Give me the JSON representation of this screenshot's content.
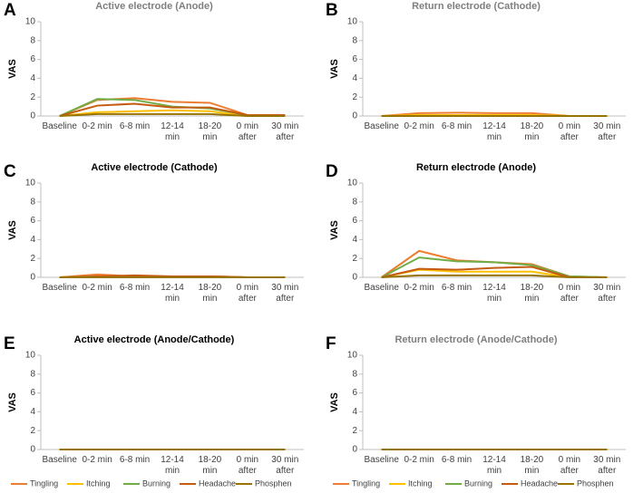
{
  "chart_data": [
    {
      "type": "line",
      "panel": "A",
      "title": "Active electrode (Anode)",
      "title_color": "#7f7f7f",
      "ylabel": "VAS",
      "categories": [
        "Baseline",
        "0-2 min",
        "6-8 min",
        "12-14 min",
        "18-20 min",
        "0 min after",
        "30 min after"
      ],
      "ylim": [
        0,
        10
      ],
      "yticks": [
        0,
        2,
        4,
        6,
        8,
        10
      ],
      "series": [
        {
          "name": "Tingling",
          "color": "#ed7d31",
          "values": [
            0,
            1.7,
            1.9,
            1.5,
            1.4,
            0.1,
            0.1
          ]
        },
        {
          "name": "Itching",
          "color": "#ffc000",
          "values": [
            0,
            0.4,
            0.5,
            0.6,
            0.5,
            0,
            0
          ]
        },
        {
          "name": "Burning",
          "color": "#70ad47",
          "values": [
            0,
            1.8,
            1.7,
            1.0,
            0.8,
            0.1,
            0.1
          ]
        },
        {
          "name": "Headache",
          "color": "#c55a11",
          "values": [
            0,
            1.1,
            1.3,
            0.9,
            0.9,
            0.1,
            0.1
          ]
        },
        {
          "name": "Phosphen",
          "color": "#997300",
          "values": [
            0,
            0.2,
            0.2,
            0.2,
            0.2,
            0,
            0
          ]
        }
      ]
    },
    {
      "type": "line",
      "panel": "B",
      "title": "Return electrode (Cathode)",
      "title_color": "#7f7f7f",
      "ylabel": "VAS",
      "categories": [
        "Baseline",
        "0-2 min",
        "6-8 min",
        "12-14 min",
        "18-20 min",
        "0 min after",
        "30 min after"
      ],
      "ylim": [
        0,
        10
      ],
      "yticks": [
        0,
        2,
        4,
        6,
        8,
        10
      ],
      "series": [
        {
          "name": "Tingling",
          "color": "#ed7d31",
          "values": [
            0,
            0.3,
            0.35,
            0.3,
            0.3,
            0,
            0
          ]
        },
        {
          "name": "Itching",
          "color": "#ffc000",
          "values": [
            0,
            0.1,
            0.1,
            0.1,
            0.1,
            0,
            0
          ]
        },
        {
          "name": "Burning",
          "color": "#70ad47",
          "values": [
            0,
            0,
            0,
            0,
            0,
            0,
            0
          ]
        },
        {
          "name": "Headache",
          "color": "#c55a11",
          "values": [
            0,
            0,
            0,
            0,
            0,
            0,
            0
          ]
        },
        {
          "name": "Phosphen",
          "color": "#997300",
          "values": [
            0,
            0,
            0,
            0,
            0,
            0,
            0
          ]
        }
      ]
    },
    {
      "type": "line",
      "panel": "C",
      "title": "Active electrode (Cathode)",
      "title_color": "#000000",
      "ylabel": "VAS",
      "categories": [
        "Baseline",
        "0-2 min",
        "6-8 min",
        "12-14 min",
        "18-20 min",
        "0 min after",
        "30 min after"
      ],
      "ylim": [
        0,
        10
      ],
      "yticks": [
        0,
        2,
        4,
        6,
        8,
        10
      ],
      "series": [
        {
          "name": "Tingling",
          "color": "#ed7d31",
          "values": [
            0,
            0.3,
            0.1,
            0.1,
            0.1,
            0,
            0
          ]
        },
        {
          "name": "Itching",
          "color": "#ffc000",
          "values": [
            0,
            0.1,
            0.1,
            0,
            0,
            0,
            0
          ]
        },
        {
          "name": "Burning",
          "color": "#70ad47",
          "values": [
            0,
            0.1,
            0.1,
            0.1,
            0.1,
            0,
            0
          ]
        },
        {
          "name": "Headache",
          "color": "#c55a11",
          "values": [
            0,
            0.1,
            0.2,
            0.1,
            0.1,
            0,
            0
          ]
        },
        {
          "name": "Phosphen",
          "color": "#997300",
          "values": [
            0,
            0,
            0,
            0,
            0,
            0,
            0
          ]
        }
      ]
    },
    {
      "type": "line",
      "panel": "D",
      "title": "Return electrode (Anode)",
      "title_color": "#000000",
      "ylabel": "VAS",
      "categories": [
        "Baseline",
        "0-2 min",
        "6-8 min",
        "12-14 min",
        "18-20 min",
        "0 min after",
        "30 min after"
      ],
      "ylim": [
        0,
        10
      ],
      "yticks": [
        0,
        2,
        4,
        6,
        8,
        10
      ],
      "series": [
        {
          "name": "Tingling",
          "color": "#ed7d31",
          "values": [
            0,
            2.8,
            1.8,
            1.6,
            1.4,
            0.1,
            0
          ]
        },
        {
          "name": "Itching",
          "color": "#ffc000",
          "values": [
            0,
            0.8,
            0.6,
            0.6,
            0.6,
            0,
            0
          ]
        },
        {
          "name": "Burning",
          "color": "#70ad47",
          "values": [
            0,
            2.1,
            1.7,
            1.6,
            1.3,
            0.1,
            0
          ]
        },
        {
          "name": "Headache",
          "color": "#c55a11",
          "values": [
            0,
            0.9,
            0.8,
            1.0,
            1.1,
            0,
            0
          ]
        },
        {
          "name": "Phosphen",
          "color": "#997300",
          "values": [
            0,
            0.2,
            0.2,
            0.2,
            0.2,
            0,
            0
          ]
        }
      ]
    },
    {
      "type": "line",
      "panel": "E",
      "title": "Active electrode (Anode/Cathode)",
      "title_color": "#000000",
      "ylabel": "VAS",
      "legend": "bottom",
      "categories": [
        "Baseline",
        "0-2 min",
        "6-8 min",
        "12-14 min",
        "18-20 min",
        "0 min after",
        "30 min after"
      ],
      "ylim": [
        0,
        10
      ],
      "yticks": [
        0,
        2,
        4,
        6,
        8,
        10
      ],
      "series": [
        {
          "name": "Tingling",
          "color": "#ed7d31",
          "values": [
            0,
            0,
            0,
            0,
            0,
            0,
            0
          ]
        },
        {
          "name": "Itching",
          "color": "#ffc000",
          "values": [
            0,
            0,
            0,
            0,
            0,
            0,
            0
          ]
        },
        {
          "name": "Burning",
          "color": "#70ad47",
          "values": [
            0,
            0,
            0,
            0,
            0,
            0,
            0
          ]
        },
        {
          "name": "Headache",
          "color": "#c55a11",
          "values": [
            0,
            0,
            0,
            0,
            0,
            0,
            0
          ]
        },
        {
          "name": "Phosphen",
          "color": "#997300",
          "values": [
            0,
            0,
            0,
            0,
            0,
            0,
            0
          ]
        }
      ]
    },
    {
      "type": "line",
      "panel": "F",
      "title": "Return electrode (Anode/Cathode)",
      "title_color": "#7f7f7f",
      "ylabel": "VAS",
      "legend": "bottom",
      "categories": [
        "Baseline",
        "0-2 min",
        "6-8 min",
        "12-14 min",
        "18-20 min",
        "0 min after",
        "30 min after"
      ],
      "ylim": [
        0,
        10
      ],
      "yticks": [
        0,
        2,
        4,
        6,
        8,
        10
      ],
      "series": [
        {
          "name": "Tingling",
          "color": "#ed7d31",
          "values": [
            0,
            0,
            0,
            0,
            0,
            0,
            0
          ]
        },
        {
          "name": "Itching",
          "color": "#ffc000",
          "values": [
            0,
            0,
            0,
            0,
            0,
            0,
            0
          ]
        },
        {
          "name": "Burning",
          "color": "#70ad47",
          "values": [
            0,
            0,
            0,
            0,
            0,
            0,
            0
          ]
        },
        {
          "name": "Headache",
          "color": "#c55a11",
          "values": [
            0,
            0,
            0,
            0,
            0,
            0,
            0
          ]
        },
        {
          "name": "Phosphen",
          "color": "#997300",
          "values": [
            0,
            0,
            0,
            0,
            0,
            0,
            0
          ]
        }
      ]
    }
  ]
}
